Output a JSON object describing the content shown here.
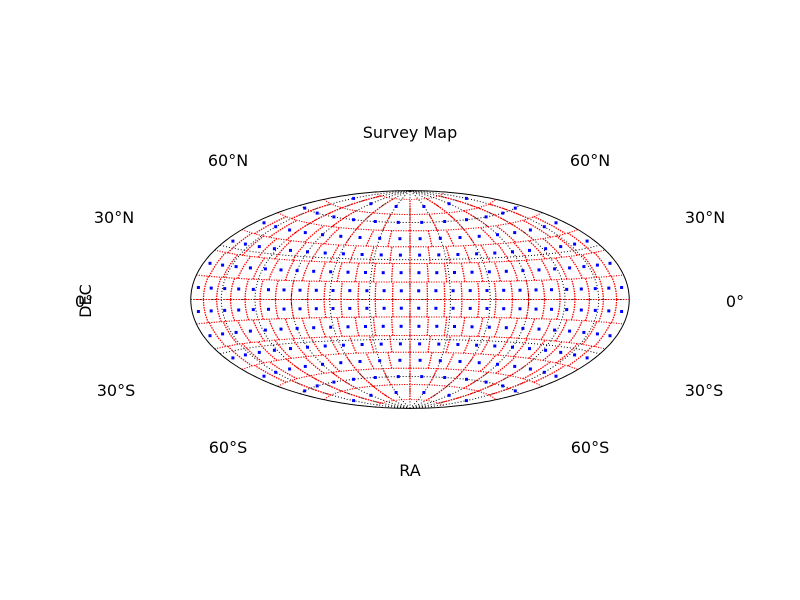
{
  "chart_data": {
    "type": "scatter",
    "projection": "hammer-aitoff",
    "title": "Survey Map",
    "xlabel": "RA",
    "ylabel": "DEC",
    "ra_range": [
      -180,
      180
    ],
    "dec_range": [
      -90,
      90
    ],
    "grid": true,
    "graticule_dec": [
      -60,
      -30,
      0,
      30,
      60
    ],
    "graticule_ra_step": 30,
    "dec_tick_labels_left": [
      {
        "dec": 60,
        "label": "60°N"
      },
      {
        "dec": 30,
        "label": "30°N"
      },
      {
        "dec": 0,
        "label": "0°"
      },
      {
        "dec": -30,
        "label": "30°S"
      },
      {
        "dec": -60,
        "label": "60°S"
      }
    ],
    "dec_tick_labels_right": [
      {
        "dec": 60,
        "label": "60°N"
      },
      {
        "dec": 30,
        "label": "30°N"
      },
      {
        "dec": 0,
        "label": "0°"
      },
      {
        "dec": -30,
        "label": "30°S"
      },
      {
        "dec": -60,
        "label": "60°S"
      }
    ],
    "field_grid": {
      "dec_edges": [
        -81,
        -67,
        -53,
        -40,
        -27,
        -13,
        0,
        13,
        27,
        40,
        53,
        67,
        81
      ],
      "fields_per_band": [
        6,
        12,
        18,
        22,
        26,
        28,
        28,
        26,
        22,
        18,
        12,
        6
      ]
    },
    "center_dec": [
      -74,
      -60,
      -46.5,
      -33.5,
      -20,
      -6.5,
      6.5,
      20,
      33.5,
      46.5,
      60,
      74
    ],
    "colors": {
      "field_outline": "#ff0000",
      "field_center": "#0000ff",
      "graticule": "#000000",
      "boundary": "#000000"
    }
  }
}
